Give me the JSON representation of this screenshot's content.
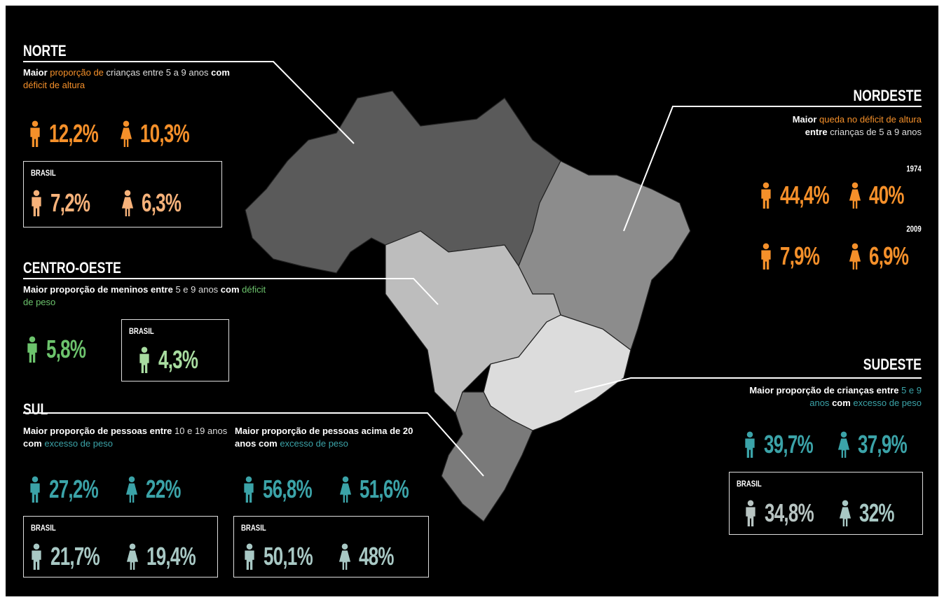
{
  "norte": {
    "title": "NORTE",
    "description": [
      "Maior",
      "proporção de",
      "crianças entre 5 a 9 anos",
      "com",
      "déficit de altura"
    ],
    "male": "12,2%",
    "female": "10,3%",
    "brasil": {
      "label": "BRASIL",
      "male": "7,2%",
      "female": "6,3%"
    }
  },
  "nordeste": {
    "title": "NORDESTE",
    "description": [
      "Maior",
      "queda no déficit de altura",
      "entre",
      "crianças de 5 a 9 anos"
    ],
    "years": [
      {
        "year": "1974",
        "male": "44,4%",
        "female": "40%"
      },
      {
        "year": "2009",
        "male": "7,9%",
        "female": "6,9%"
      }
    ]
  },
  "centro_oeste": {
    "title": "CENTRO-OESTE",
    "description": [
      "Maior proporção de meninos entre",
      "5 e 9 anos",
      "com",
      "déficit de peso"
    ],
    "male": "5,8%",
    "brasil": {
      "label": "BRASIL",
      "male": "4,3%"
    }
  },
  "sul": {
    "title": "SUL",
    "groups": [
      {
        "description": [
          "Maior proporção de pessoas entre",
          "10 e 19 anos",
          "com",
          "excesso de peso"
        ],
        "male": "27,2%",
        "female": "22%",
        "brasil": {
          "label": "BRASIL",
          "male": "21,7%",
          "female": "19,4%"
        }
      },
      {
        "description": [
          "Maior proporção de pessoas acima de 20 anos",
          "com",
          "excesso de peso"
        ],
        "male": "56,8%",
        "female": "51,6%",
        "brasil": {
          "label": "BRASIL",
          "male": "50,1%",
          "female": "48%"
        }
      }
    ]
  },
  "sudeste": {
    "title": "SUDESTE",
    "description": [
      "Maior proporção de crianças entre",
      "5 e 9 anos",
      "com",
      "excesso de peso"
    ],
    "male": "39,7%",
    "female": "37,9%",
    "brasil": {
      "label": "BRASIL",
      "male": "34,8%",
      "female": "32%"
    }
  }
}
